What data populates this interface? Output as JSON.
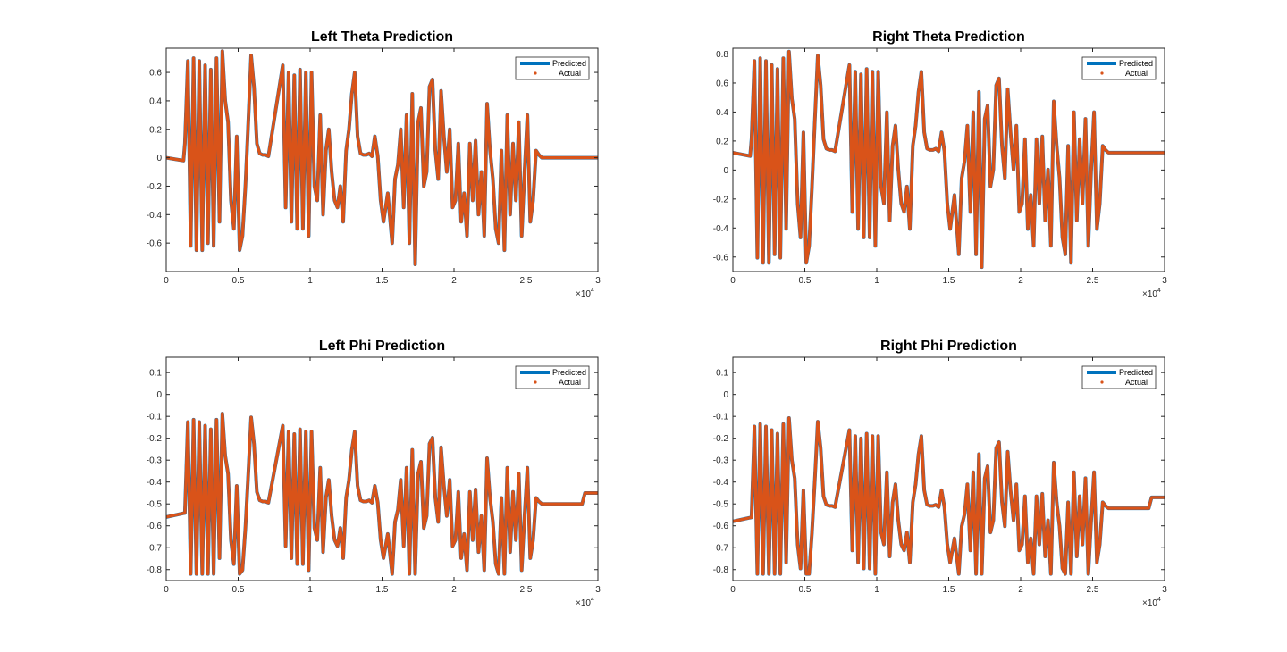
{
  "figure": {
    "background": "#ffffff"
  },
  "legend": {
    "predicted_label": "Predicted",
    "actual_label": "Actual"
  },
  "colors": {
    "predicted": "#0072BD",
    "actual": "#D95319",
    "axis": "#262626"
  },
  "chart_data": [
    {
      "type": "line",
      "title": "Left Theta Prediction",
      "xlabel": "",
      "ylabel": "",
      "xlim": [
        0,
        30000
      ],
      "ylim": [
        -0.8,
        0.77
      ],
      "xticks": [
        0,
        5000,
        10000,
        15000,
        20000,
        25000,
        30000
      ],
      "xtick_labels": [
        "0",
        "0.5",
        "1",
        "1.5",
        "2",
        "2.5",
        "3"
      ],
      "x_exponent": "4",
      "yticks": [
        -0.6,
        -0.4,
        -0.2,
        0,
        0.2,
        0.4,
        0.6
      ],
      "ytick_labels": [
        "-0.6",
        "-0.4",
        "-0.2",
        "0",
        "0.2",
        "0.4",
        "0.6"
      ],
      "legend_position": "top-right",
      "series": [
        {
          "name": "Predicted",
          "style": "line",
          "x": [
            0,
            1200,
            1300,
            1500,
            1700,
            1900,
            2100,
            2300,
            2500,
            2700,
            2900,
            3100,
            3300,
            3500,
            3700,
            3900,
            4100,
            4300,
            4500,
            4700,
            4900,
            5100,
            5300,
            5500,
            5700,
            5900,
            6100,
            6300,
            6500,
            6700,
            6900,
            7100,
            8100,
            8300,
            8500,
            8700,
            8900,
            9100,
            9300,
            9500,
            9700,
            9900,
            10100,
            10300,
            10500,
            10700,
            10900,
            11100,
            11300,
            11500,
            11700,
            11900,
            12100,
            12300,
            12500,
            12700,
            12900,
            13100,
            13300,
            13500,
            13700,
            13900,
            14100,
            14300,
            14500,
            14700,
            14900,
            15100,
            15400,
            15700,
            15900,
            16100,
            16300,
            16500,
            16700,
            16900,
            17100,
            17300,
            17500,
            17700,
            17900,
            18100,
            18300,
            18500,
            18700,
            18900,
            19100,
            19300,
            19500,
            19700,
            19900,
            20100,
            20300,
            20500,
            20700,
            20900,
            21100,
            21300,
            21500,
            21700,
            21900,
            22100,
            22300,
            22500,
            22700,
            22900,
            23100,
            23300,
            23500,
            23700,
            23900,
            24100,
            24300,
            24500,
            24700,
            24900,
            25100,
            25300,
            25500,
            25700,
            25900,
            26100,
            26300,
            26500,
            26700,
            26900,
            27100,
            27300,
            27500,
            27700,
            27900,
            28100,
            28300,
            28500,
            28700,
            28900,
            29100,
            29300,
            29500,
            29700,
            30000
          ],
          "y": [
            0,
            -0.02,
            0.1,
            0.68,
            -0.62,
            0.7,
            -0.65,
            0.68,
            -0.65,
            0.65,
            -0.6,
            0.62,
            -0.62,
            0.7,
            -0.45,
            0.75,
            0.4,
            0.25,
            -0.3,
            -0.5,
            0.15,
            -0.65,
            -0.55,
            -0.2,
            0.25,
            0.72,
            0.5,
            0.1,
            0.03,
            0.02,
            0.02,
            0.01,
            0.65,
            -0.35,
            0.6,
            -0.45,
            0.58,
            -0.5,
            0.62,
            -0.5,
            0.6,
            -0.55,
            0.6,
            -0.2,
            -0.3,
            0.3,
            -0.4,
            0.05,
            0.2,
            -0.1,
            -0.3,
            -0.35,
            -0.2,
            -0.45,
            0.05,
            0.2,
            0.45,
            0.6,
            0.15,
            0.03,
            0.02,
            0.02,
            0.03,
            0.01,
            0.15,
            0.01,
            -0.3,
            -0.45,
            -0.25,
            -0.6,
            -0.15,
            -0.05,
            0.2,
            -0.35,
            0.3,
            -0.6,
            0.45,
            -0.75,
            0.25,
            0.35,
            -0.2,
            -0.1,
            0.5,
            0.55,
            0.05,
            -0.15,
            0.47,
            0.15,
            -0.1,
            0.2,
            -0.35,
            -0.3,
            0.1,
            -0.45,
            -0.25,
            -0.55,
            0.1,
            -0.3,
            0.12,
            -0.4,
            -0.1,
            -0.55,
            0.38,
            0.05,
            -0.15,
            -0.5,
            -0.6,
            0.05,
            -0.65,
            0.3,
            -0.4,
            0.1,
            -0.3,
            0.25,
            -0.55,
            -0.1,
            0.3,
            -0.45,
            -0.3,
            0.05,
            0.02,
            0,
            0,
            0,
            0,
            0,
            0,
            0,
            0,
            0,
            0,
            0,
            0,
            0,
            0,
            0,
            0,
            0,
            0,
            0,
            0
          ]
        },
        {
          "name": "Actual",
          "style": "markers"
        }
      ]
    },
    {
      "type": "line",
      "title": "Right Theta Prediction",
      "xlabel": "",
      "ylabel": "",
      "xlim": [
        0,
        30000
      ],
      "ylim": [
        -0.7,
        0.84
      ],
      "xticks": [
        0,
        5000,
        10000,
        15000,
        20000,
        25000,
        30000
      ],
      "xtick_labels": [
        "0",
        "0.5",
        "1",
        "1.5",
        "2",
        "2.5",
        "3"
      ],
      "x_exponent": "4",
      "yticks": [
        -0.6,
        -0.4,
        -0.2,
        0,
        0.2,
        0.4,
        0.6,
        0.8
      ],
      "ytick_labels": [
        "-0.6",
        "-0.4",
        "-0.2",
        "0",
        "0.2",
        "0.4",
        "0.6",
        "0.8"
      ],
      "legend_position": "top-right",
      "series": [
        {
          "name": "Predicted",
          "style": "line"
        },
        {
          "name": "Actual",
          "style": "markers"
        }
      ]
    },
    {
      "type": "line",
      "title": "Left Phi Prediction",
      "xlabel": "",
      "ylabel": "",
      "xlim": [
        0,
        30000
      ],
      "ylim": [
        -0.85,
        0.17
      ],
      "xticks": [
        0,
        5000,
        10000,
        15000,
        20000,
        25000,
        30000
      ],
      "xtick_labels": [
        "0",
        "0.5",
        "1",
        "1.5",
        "2",
        "2.5",
        "3"
      ],
      "x_exponent": "4",
      "yticks": [
        -0.8,
        -0.7,
        -0.6,
        -0.5,
        -0.4,
        -0.3,
        -0.2,
        -0.1,
        0,
        0.1
      ],
      "ytick_labels": [
        "-0.8",
        "-0.7",
        "-0.6",
        "-0.5",
        "-0.4",
        "-0.3",
        "-0.2",
        "-0.1",
        "0",
        "0.1"
      ],
      "legend_position": "top-right",
      "series": [
        {
          "name": "Predicted",
          "style": "line"
        },
        {
          "name": "Actual",
          "style": "markers"
        }
      ]
    },
    {
      "type": "line",
      "title": "Right Phi Prediction",
      "xlabel": "",
      "ylabel": "",
      "xlim": [
        0,
        30000
      ],
      "ylim": [
        -0.85,
        0.17
      ],
      "xticks": [
        0,
        5000,
        10000,
        15000,
        20000,
        25000,
        30000
      ],
      "xtick_labels": [
        "0",
        "0.5",
        "1",
        "1.5",
        "2",
        "2.5",
        "3"
      ],
      "x_exponent": "4",
      "yticks": [
        -0.8,
        -0.7,
        -0.6,
        -0.5,
        -0.4,
        -0.3,
        -0.2,
        -0.1,
        0,
        0.1
      ],
      "ytick_labels": [
        "-0.8",
        "-0.7",
        "-0.6",
        "-0.5",
        "-0.4",
        "-0.3",
        "-0.2",
        "-0.1",
        "0",
        "0.1"
      ],
      "legend_position": "top-right",
      "series": [
        {
          "name": "Predicted",
          "style": "line"
        },
        {
          "name": "Actual",
          "style": "markers"
        }
      ]
    }
  ]
}
